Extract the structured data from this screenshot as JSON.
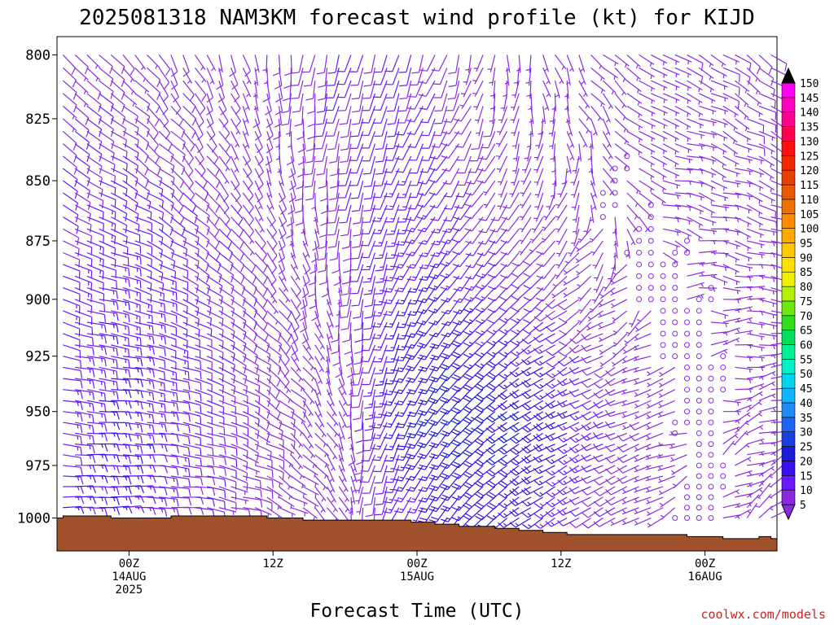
{
  "chart_data": {
    "type": "wind-barb-profile",
    "title": "2025081318 NAM3KM forecast wind profile (kt) for KIJD",
    "xlabel": "Forecast Time (UTC)",
    "credit": "coolwx.com/models",
    "y_axis": {
      "ticks": [
        800,
        825,
        850,
        875,
        900,
        925,
        950,
        975,
        1000
      ],
      "ylim": [
        793,
        1016
      ],
      "scale": "log-pressure",
      "inverted": true
    },
    "x_axis": {
      "unit": "forecast hours after 2025081318",
      "xlim": [
        0,
        60
      ],
      "ticks": [
        {
          "hour": 6,
          "lines": [
            "00Z",
            "14AUG",
            "2025"
          ]
        },
        {
          "hour": 18,
          "lines": [
            "12Z"
          ]
        },
        {
          "hour": 30,
          "lines": [
            "00Z",
            "15AUG"
          ]
        },
        {
          "hour": 42,
          "lines": [
            "12Z"
          ]
        },
        {
          "hour": 54,
          "lines": [
            "00Z",
            "16AUG"
          ]
        }
      ]
    },
    "colorbar": {
      "levels": [
        5,
        10,
        15,
        20,
        25,
        30,
        35,
        40,
        45,
        50,
        55,
        60,
        65,
        70,
        75,
        80,
        85,
        90,
        95,
        100,
        105,
        110,
        115,
        120,
        125,
        130,
        135,
        140,
        145,
        150
      ],
      "colors": [
        "#8a2be2",
        "#6a1aff",
        "#3a10ee",
        "#1c1cd8",
        "#1c40e0",
        "#1e64f0",
        "#1e8cf8",
        "#10b4ff",
        "#00d6f0",
        "#00f0c8",
        "#00f096",
        "#00e060",
        "#30e020",
        "#70e810",
        "#b0f000",
        "#f0f000",
        "#ffe000",
        "#ffc800",
        "#ffa800",
        "#ff8c00",
        "#f07000",
        "#e85800",
        "#e84000",
        "#f02800",
        "#ff1010",
        "#ff0050",
        "#ff0090",
        "#ff00c0",
        "#ff00f0",
        "#ff40ff"
      ]
    },
    "terrain_color": "#a0522d",
    "surface_pressure": {
      "hours": [
        0,
        1,
        2,
        3,
        4,
        5,
        6,
        7,
        8,
        9,
        10,
        11,
        12,
        13,
        14,
        15,
        16,
        17,
        18,
        19,
        20,
        21,
        22,
        23,
        24,
        25,
        26,
        27,
        28,
        29,
        30,
        31,
        32,
        33,
        34,
        35,
        36,
        37,
        38,
        39,
        40,
        41,
        42,
        43,
        44,
        45,
        46,
        47,
        48,
        49,
        50,
        51,
        52,
        53,
        54,
        55,
        56,
        57,
        58,
        59,
        60
      ],
      "values": [
        1000,
        999,
        999,
        999,
        999,
        1000,
        1000,
        1000,
        1000,
        1000,
        999,
        999,
        999,
        999,
        999,
        999,
        999,
        999,
        1000,
        1000,
        1000,
        1001,
        1001,
        1001,
        1001,
        1001,
        1001,
        1001,
        1001,
        1001,
        1002,
        1002,
        1003,
        1003,
        1004,
        1004,
        1004,
        1005,
        1005,
        1006,
        1006,
        1007,
        1007,
        1008,
        1008,
        1008,
        1008,
        1008,
        1008,
        1008,
        1008,
        1008,
        1008,
        1009,
        1009,
        1009,
        1010,
        1010,
        1010,
        1009,
        1010
      ]
    },
    "wind_barbs": {
      "hour_start": 0.5,
      "hour_step": 1,
      "level_start": 800,
      "level_step": 5,
      "level_end": 1000,
      "anchors": [
        {
          "hour": 0,
          "u": [
            -5,
            -8,
            -10,
            -12,
            -14
          ],
          "v": [
            6,
            6,
            4,
            2,
            0
          ]
        },
        {
          "hour": 4,
          "u": [
            -6,
            -10,
            -14,
            -16,
            -16
          ],
          "v": [
            5,
            5,
            3,
            1,
            -1
          ]
        },
        {
          "hour": 8,
          "u": [
            -4,
            -8,
            -12,
            -13,
            -12
          ],
          "v": [
            6,
            6,
            4,
            2,
            0
          ]
        },
        {
          "hour": 12,
          "u": [
            -3,
            -6,
            -9,
            -10,
            -9
          ],
          "v": [
            7,
            7,
            5,
            3,
            1
          ]
        },
        {
          "hour": 16,
          "u": [
            -2,
            -4,
            -7,
            -8,
            -7
          ],
          "v": [
            7,
            7,
            6,
            4,
            2
          ]
        },
        {
          "hour": 20,
          "u": [
            1,
            -1,
            -3,
            -5,
            -5
          ],
          "v": [
            9,
            8,
            7,
            5,
            3
          ]
        },
        {
          "hour": 24,
          "u": [
            3,
            2,
            0,
            -2,
            -2
          ],
          "v": [
            10,
            9,
            8,
            6,
            4
          ]
        },
        {
          "hour": 28,
          "u": [
            3,
            4,
            5,
            6,
            4
          ],
          "v": [
            10,
            12,
            14,
            15,
            10
          ]
        },
        {
          "hour": 32,
          "u": [
            3,
            6,
            10,
            13,
            9
          ],
          "v": [
            8,
            10,
            14,
            18,
            14
          ]
        },
        {
          "hour": 36,
          "u": [
            1,
            4,
            9,
            17,
            13
          ],
          "v": [
            6,
            7,
            10,
            14,
            12
          ]
        },
        {
          "hour": 40,
          "u": [
            -1,
            2,
            8,
            18,
            14
          ],
          "v": [
            5,
            5,
            7,
            10,
            9
          ]
        },
        {
          "hour": 44,
          "u": [
            -3,
            0,
            5,
            13,
            10
          ],
          "v": [
            4,
            3,
            4,
            6,
            6
          ]
        },
        {
          "hour": 48,
          "u": [
            -5,
            -3,
            2,
            8,
            6
          ],
          "v": [
            3,
            2,
            2,
            3,
            3
          ]
        },
        {
          "hour": 52,
          "u": [
            -6,
            -5,
            -1,
            3,
            2
          ],
          "v": [
            3,
            1,
            0,
            1,
            1
          ]
        },
        {
          "hour": 56,
          "u": [
            -6,
            -6,
            -4,
            -3,
            -3
          ],
          "v": [
            4,
            2,
            0,
            -1,
            -2
          ]
        },
        {
          "hour": 60,
          "u": [
            -7,
            -7,
            -6,
            -5,
            -4
          ],
          "v": [
            5,
            3,
            1,
            -1,
            -3
          ]
        }
      ],
      "anchor_levels": [
        800,
        850,
        900,
        950,
        1000
      ]
    }
  }
}
